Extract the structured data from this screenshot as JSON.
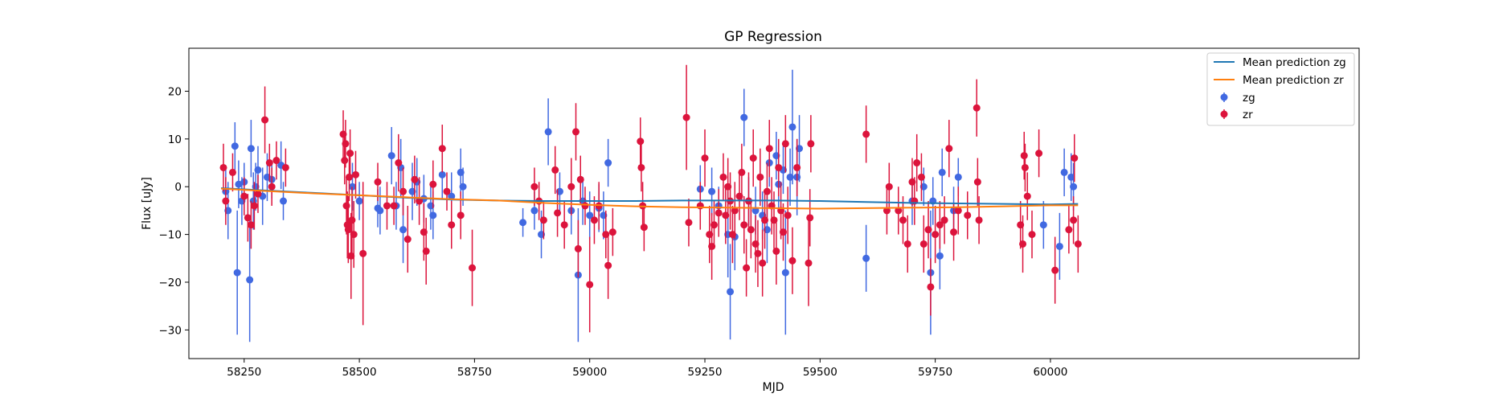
{
  "chart_data": {
    "type": "scatter",
    "title": "GP Regression",
    "xlabel": "MJD",
    "ylabel": "Flux [uJy]",
    "xlim": [
      58130,
      60670
    ],
    "ylim": [
      -36,
      29
    ],
    "xticks": [
      58250,
      58500,
      58750,
      59000,
      59250,
      59500,
      59750,
      60000
    ],
    "yticks": [
      -30,
      -20,
      -10,
      0,
      10,
      20
    ],
    "grid": false,
    "legend_position": "top-right",
    "colors": {
      "zg_line": "#1f77b4",
      "zr_line": "#ff7f0e",
      "zg_points": "#4169e1",
      "zr_points": "#dc143c"
    },
    "legend": [
      {
        "label": "Mean prediction zg",
        "kind": "line",
        "color": "#1f77b4"
      },
      {
        "label": "Mean prediction zr",
        "kind": "line",
        "color": "#ff7f0e"
      },
      {
        "label": "zg",
        "kind": "errorbar",
        "color": "#4169e1"
      },
      {
        "label": "zr",
        "kind": "errorbar",
        "color": "#dc143c"
      }
    ],
    "series": [
      {
        "name": "Mean prediction zg",
        "kind": "line",
        "x": [
          58200,
          58300,
          58400,
          58500,
          58600,
          58700,
          58800,
          58900,
          59000,
          59100,
          59200,
          59300,
          59400,
          59500,
          59600,
          59700,
          59800,
          59900,
          60000,
          60060
        ],
        "y": [
          -0.3,
          -0.8,
          -1.3,
          -1.8,
          -2.3,
          -2.7,
          -2.9,
          -3.0,
          -3.0,
          -3.0,
          -2.9,
          -2.9,
          -2.9,
          -3.0,
          -3.2,
          -3.4,
          -3.5,
          -3.6,
          -3.7,
          -3.6
        ]
      },
      {
        "name": "Mean prediction zr",
        "kind": "line",
        "x": [
          58200,
          58300,
          58400,
          58500,
          58600,
          58700,
          58800,
          58900,
          59000,
          59100,
          59200,
          59300,
          59400,
          59500,
          59600,
          59700,
          59800,
          59900,
          60000,
          60060
        ],
        "y": [
          -0.4,
          -0.9,
          -1.4,
          -1.8,
          -2.2,
          -2.6,
          -2.9,
          -3.4,
          -3.8,
          -4.1,
          -4.3,
          -4.4,
          -4.5,
          -4.6,
          -4.5,
          -4.4,
          -4.3,
          -4.1,
          -3.9,
          -3.9
        ]
      },
      {
        "name": "zg",
        "kind": "errorbar",
        "points": [
          [
            58210,
            -1,
            5
          ],
          [
            58215,
            -5,
            6
          ],
          [
            58230,
            8.5,
            5
          ],
          [
            58235,
            -18,
            13
          ],
          [
            58238,
            0.5,
            5
          ],
          [
            58245,
            -3,
            5
          ],
          [
            58250,
            1,
            4
          ],
          [
            58262,
            -19.5,
            13
          ],
          [
            58265,
            8,
            6
          ],
          [
            58270,
            -3,
            6
          ],
          [
            58275,
            0,
            5
          ],
          [
            58280,
            3.5,
            5
          ],
          [
            58290,
            -2,
            6
          ],
          [
            58300,
            2,
            5
          ],
          [
            58310,
            1.5,
            4
          ],
          [
            58330,
            4.5,
            5
          ],
          [
            58335,
            -3,
            4
          ],
          [
            58485,
            0,
            5
          ],
          [
            58500,
            -3,
            4
          ],
          [
            58540,
            -4.5,
            4
          ],
          [
            58545,
            -5,
            5
          ],
          [
            58570,
            6.5,
            6
          ],
          [
            58580,
            -4,
            5
          ],
          [
            58590,
            4,
            6
          ],
          [
            58595,
            -9,
            7
          ],
          [
            58615,
            -1,
            6
          ],
          [
            58625,
            1,
            5
          ],
          [
            58640,
            -2.5,
            5
          ],
          [
            58655,
            -4,
            5
          ],
          [
            58660,
            -6,
            5
          ],
          [
            58680,
            2.5,
            5
          ],
          [
            58700,
            -2,
            5
          ],
          [
            58720,
            3,
            5
          ],
          [
            58725,
            0,
            4
          ],
          [
            58855,
            -7.5,
            3
          ],
          [
            58880,
            -5,
            4
          ],
          [
            58895,
            -10,
            5
          ],
          [
            58910,
            11.5,
            7
          ],
          [
            58935,
            -1,
            4
          ],
          [
            58960,
            -5,
            5
          ],
          [
            58975,
            -18.5,
            14
          ],
          [
            58985,
            -3,
            5
          ],
          [
            59000,
            -6,
            5
          ],
          [
            59020,
            -4.5,
            5
          ],
          [
            59030,
            -6,
            5
          ],
          [
            59040,
            5,
            5
          ],
          [
            59240,
            -0.5,
            5
          ],
          [
            59265,
            -1,
            5
          ],
          [
            59280,
            -4,
            4
          ],
          [
            59300,
            -10,
            9
          ],
          [
            59305,
            -22,
            10
          ],
          [
            59315,
            -10.5,
            7
          ],
          [
            59335,
            14.5,
            6
          ],
          [
            59345,
            -3,
            5
          ],
          [
            59360,
            -5,
            5
          ],
          [
            59375,
            -6,
            5
          ],
          [
            59385,
            -9,
            7
          ],
          [
            59390,
            5,
            5
          ],
          [
            59405,
            6.5,
            5
          ],
          [
            59410,
            0.5,
            5
          ],
          [
            59420,
            3.5,
            5
          ],
          [
            59425,
            -18,
            13
          ],
          [
            59435,
            2,
            6
          ],
          [
            59440,
            12.5,
            12
          ],
          [
            59450,
            2,
            8
          ],
          [
            59455,
            8,
            7
          ],
          [
            59600,
            -15,
            7
          ],
          [
            59700,
            -3,
            5
          ],
          [
            59725,
            0,
            4
          ],
          [
            59740,
            -18,
            13
          ],
          [
            59745,
            -3,
            5
          ],
          [
            59760,
            -14.5,
            7
          ],
          [
            59765,
            3,
            5
          ],
          [
            59790,
            -5,
            5
          ],
          [
            59800,
            2,
            4
          ],
          [
            59985,
            -8,
            5
          ],
          [
            60020,
            -12.5,
            7
          ],
          [
            60030,
            3,
            5
          ],
          [
            60045,
            2,
            5
          ],
          [
            60050,
            0,
            5
          ]
        ]
      },
      {
        "name": "zr",
        "kind": "errorbar",
        "points": [
          [
            58205,
            4,
            5
          ],
          [
            58210,
            -3,
            5
          ],
          [
            58225,
            3,
            4
          ],
          [
            58250,
            -2,
            4
          ],
          [
            58258,
            -6.5,
            5
          ],
          [
            58265,
            -8,
            5
          ],
          [
            58272,
            -4,
            5
          ],
          [
            58280,
            -1.5,
            4
          ],
          [
            58295,
            14,
            7
          ],
          [
            58305,
            5,
            4
          ],
          [
            58310,
            0,
            4
          ],
          [
            58320,
            5.5,
            4
          ],
          [
            58340,
            4,
            4
          ],
          [
            58465,
            11,
            5
          ],
          [
            58468,
            5.5,
            5
          ],
          [
            58470,
            9,
            5
          ],
          [
            58472,
            -4,
            6
          ],
          [
            58474,
            -8,
            7
          ],
          [
            58476,
            -9,
            7
          ],
          [
            58478,
            2,
            5
          ],
          [
            58480,
            7,
            5
          ],
          [
            58482,
            -14.5,
            9
          ],
          [
            58484,
            -7,
            7
          ],
          [
            58488,
            -10,
            7
          ],
          [
            58492,
            2.5,
            5
          ],
          [
            58508,
            -14,
            15
          ],
          [
            58540,
            1,
            4
          ],
          [
            58560,
            -4,
            5
          ],
          [
            58575,
            -4,
            4
          ],
          [
            58585,
            5,
            6
          ],
          [
            58595,
            -1,
            5
          ],
          [
            58605,
            -11,
            7
          ],
          [
            58620,
            1.5,
            5
          ],
          [
            58630,
            -3,
            5
          ],
          [
            58640,
            -9.5,
            6
          ],
          [
            58645,
            -13.5,
            7
          ],
          [
            58660,
            0.5,
            5
          ],
          [
            58680,
            8,
            5
          ],
          [
            58690,
            -1,
            4
          ],
          [
            58700,
            -8,
            5
          ],
          [
            58720,
            -6,
            5
          ],
          [
            58745,
            -17,
            8
          ],
          [
            58880,
            0,
            4
          ],
          [
            58890,
            -3,
            4
          ],
          [
            58900,
            -7,
            4
          ],
          [
            58925,
            3.5,
            5
          ],
          [
            58930,
            -5.5,
            5
          ],
          [
            58945,
            -8,
            5
          ],
          [
            58960,
            0,
            6
          ],
          [
            58970,
            11.5,
            6
          ],
          [
            58975,
            -13,
            6
          ],
          [
            58980,
            1.5,
            5
          ],
          [
            58990,
            -4,
            4
          ],
          [
            59000,
            -20.5,
            10
          ],
          [
            59010,
            -7,
            5
          ],
          [
            59020,
            -4,
            5
          ],
          [
            59035,
            -10,
            5
          ],
          [
            59040,
            -16.5,
            7
          ],
          [
            59050,
            -9.5,
            5
          ],
          [
            59110,
            9.5,
            5
          ],
          [
            59112,
            4,
            5
          ],
          [
            59115,
            -4,
            5
          ],
          [
            59118,
            -8.5,
            5
          ],
          [
            59210,
            14.5,
            11
          ],
          [
            59215,
            -7.5,
            5
          ],
          [
            59240,
            -4,
            5
          ],
          [
            59250,
            6,
            6
          ],
          [
            59260,
            -10,
            6
          ],
          [
            59265,
            -12.5,
            7
          ],
          [
            59270,
            -8,
            5
          ],
          [
            59280,
            -5.5,
            5
          ],
          [
            59290,
            2,
            5
          ],
          [
            59295,
            -6,
            6
          ],
          [
            59300,
            0,
            6
          ],
          [
            59305,
            -3,
            6
          ],
          [
            59310,
            -10,
            6
          ],
          [
            59315,
            -5,
            6
          ],
          [
            59325,
            -2,
            5
          ],
          [
            59330,
            3,
            6
          ],
          [
            59335,
            -8,
            6
          ],
          [
            59340,
            -17,
            6
          ],
          [
            59345,
            -3,
            6
          ],
          [
            59350,
            -9,
            6
          ],
          [
            59355,
            6,
            6
          ],
          [
            59360,
            -12,
            6
          ],
          [
            59365,
            -14,
            7
          ],
          [
            59370,
            2,
            6
          ],
          [
            59375,
            -16,
            7
          ],
          [
            59380,
            -7,
            6
          ],
          [
            59385,
            -1,
            6
          ],
          [
            59390,
            8,
            6
          ],
          [
            59395,
            -4,
            6
          ],
          [
            59400,
            -7,
            6
          ],
          [
            59405,
            -13.5,
            7
          ],
          [
            59410,
            4,
            6
          ],
          [
            59415,
            -5,
            6
          ],
          [
            59420,
            -9.5,
            6
          ],
          [
            59425,
            9,
            6
          ],
          [
            59430,
            -6,
            6
          ],
          [
            59440,
            -15.5,
            7
          ],
          [
            59450,
            4,
            6
          ],
          [
            59475,
            -16,
            9
          ],
          [
            59478,
            -6.5,
            6
          ],
          [
            59480,
            9,
            6
          ],
          [
            59600,
            11,
            6
          ],
          [
            59645,
            -5,
            5
          ],
          [
            59650,
            0,
            5
          ],
          [
            59670,
            -5,
            5
          ],
          [
            59680,
            -7,
            5
          ],
          [
            59690,
            -12,
            6
          ],
          [
            59700,
            1,
            5
          ],
          [
            59705,
            -3,
            5
          ],
          [
            59710,
            5,
            6
          ],
          [
            59720,
            2,
            5
          ],
          [
            59725,
            -12,
            6
          ],
          [
            59735,
            -9,
            6
          ],
          [
            59740,
            -21,
            6
          ],
          [
            59750,
            -10,
            6
          ],
          [
            59760,
            -8,
            5
          ],
          [
            59770,
            -7,
            5
          ],
          [
            59780,
            8,
            6
          ],
          [
            59790,
            -9.5,
            6
          ],
          [
            59800,
            -5,
            5
          ],
          [
            59820,
            -6,
            5
          ],
          [
            59840,
            16.5,
            6
          ],
          [
            59842,
            1,
            5
          ],
          [
            59845,
            -7,
            5
          ],
          [
            59935,
            -8,
            5
          ],
          [
            59940,
            -12,
            6
          ],
          [
            59943,
            6.5,
            5
          ],
          [
            59945,
            4,
            5
          ],
          [
            59950,
            -2,
            5
          ],
          [
            59960,
            -10,
            5
          ],
          [
            59975,
            7,
            5
          ],
          [
            60010,
            -17.5,
            7
          ],
          [
            60040,
            -9,
            5
          ],
          [
            60050,
            -7,
            5
          ],
          [
            60052,
            6,
            5
          ],
          [
            60060,
            -12,
            6
          ]
        ]
      }
    ]
  }
}
